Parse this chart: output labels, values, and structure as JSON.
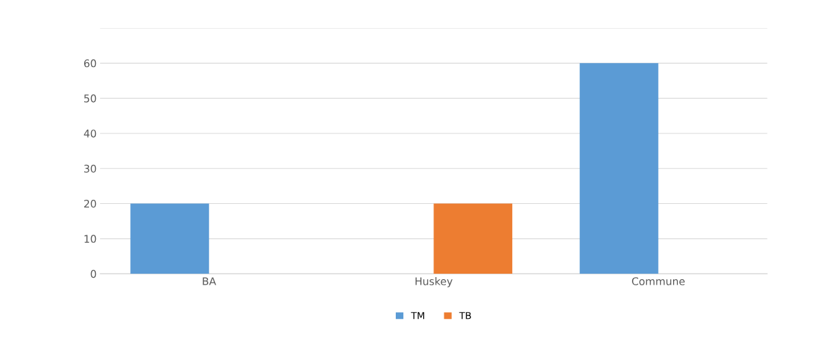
{
  "chart_data": {
    "type": "bar",
    "categories": [
      "BA",
      "Huskey",
      "Commune"
    ],
    "series": [
      {
        "name": "TM",
        "color": "#5b9bd5",
        "values": [
          20,
          0,
          60
        ]
      },
      {
        "name": "TB",
        "color": "#ed7d31",
        "values": [
          0,
          20,
          0
        ]
      }
    ],
    "ylim": [
      0,
      70
    ],
    "yticks": [
      0,
      10,
      20,
      30,
      40,
      50,
      60,
      {
        "value": 70,
        "label": null
      }
    ],
    "grid": "y",
    "legend": "bottom"
  }
}
